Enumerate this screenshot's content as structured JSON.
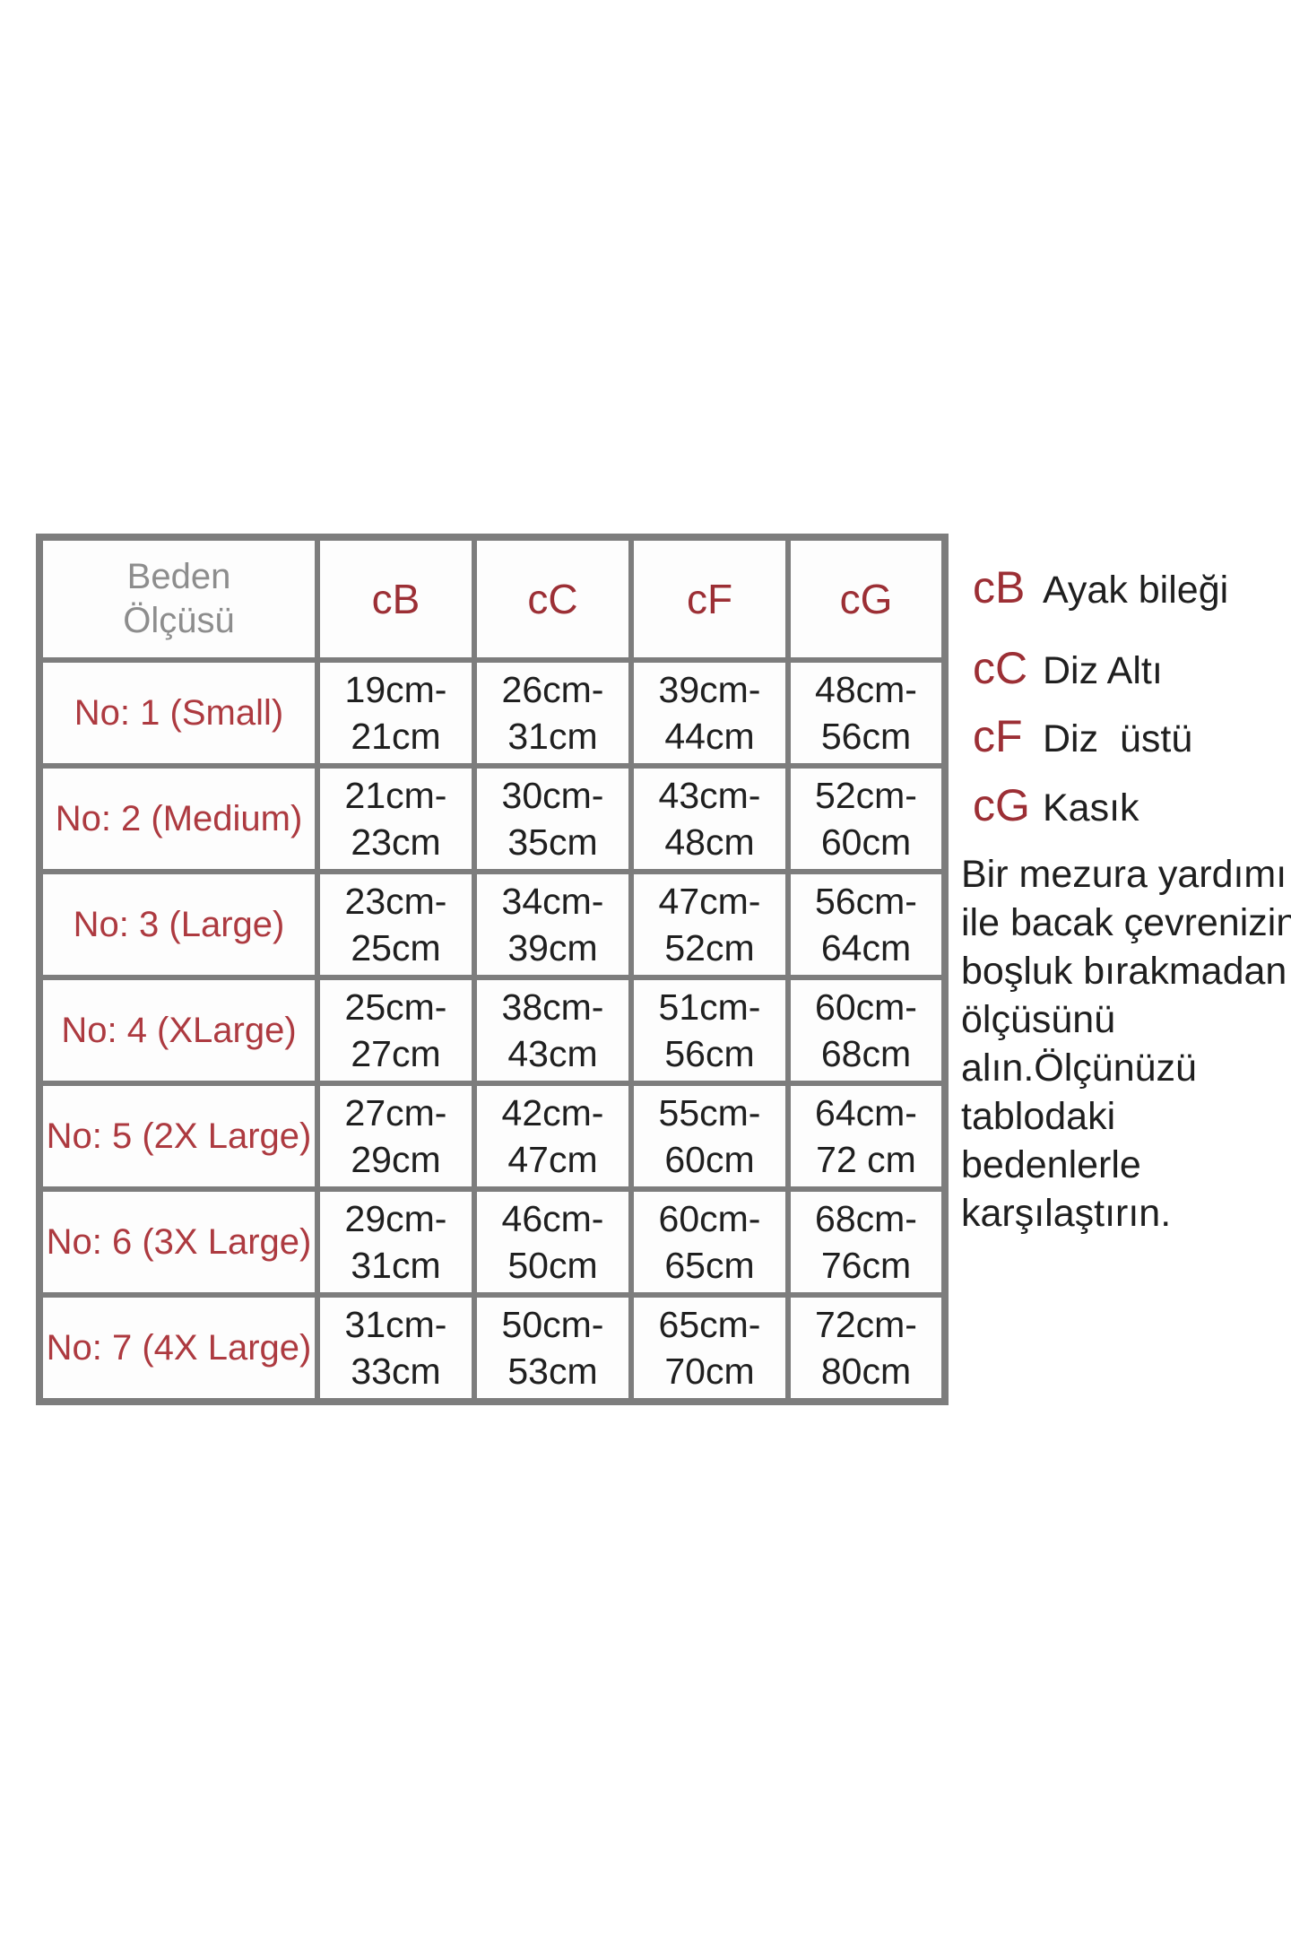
{
  "table": {
    "corner_label": "Beden\nÖlçüsü",
    "columns": [
      "cB",
      "cC",
      "cF",
      "cG"
    ],
    "rows": [
      {
        "label": "No: 1 (Small)",
        "values": [
          "19cm-\n21cm",
          "26cm-\n31cm",
          "39cm-\n44cm",
          "48cm-\n56cm"
        ]
      },
      {
        "label": "No: 2 (Medium)",
        "values": [
          "21cm-\n23cm",
          "30cm-\n35cm",
          "43cm-\n48cm",
          "52cm-\n60cm"
        ]
      },
      {
        "label": "No: 3 (Large)",
        "values": [
          "23cm-\n25cm",
          "34cm-\n39cm",
          "47cm-\n52cm",
          "56cm-\n64cm"
        ]
      },
      {
        "label": "No: 4 (XLarge)",
        "values": [
          "25cm-\n27cm",
          "38cm-\n43cm",
          "51cm-\n56cm",
          "60cm-\n68cm"
        ]
      },
      {
        "label": "No: 5 (2X Large)",
        "values": [
          "27cm-\n29cm",
          "42cm-\n47cm",
          "55cm-\n60cm",
          "64cm-\n72 cm"
        ]
      },
      {
        "label": "No: 6 (3X Large)",
        "values": [
          "29cm-\n31cm",
          "46cm-\n50cm",
          "60cm-\n65cm",
          "68cm-\n76cm"
        ]
      },
      {
        "label": "No: 7 (4X Large)",
        "values": [
          "31cm-\n33cm",
          "50cm-\n53cm",
          "65cm-\n70cm",
          "72cm-\n80cm"
        ]
      }
    ]
  },
  "legend": {
    "items": [
      {
        "abbr": "cB",
        "label": "Ayak bileği"
      },
      {
        "abbr": "cC",
        "label": "Diz Altı"
      },
      {
        "abbr": "cF",
        "label": "Diz  üstü"
      },
      {
        "abbr": "cG",
        "label": "Kasık"
      }
    ]
  },
  "note": "Bir mezura yardımı\nile bacak çevrenizin\nboşluk bırakmadan\nölçüsünü\nalın.Ölçünüzü\ntablodaki\nbedenlerle\nkarşılaştırın.",
  "colors": {
    "accent_red_header": "#9c2f35",
    "accent_red_row": "#ad3a40",
    "border_gray": "#7d7d7d",
    "corner_text_gray": "#8d8d8d",
    "text_black": "#1f1f1f"
  }
}
